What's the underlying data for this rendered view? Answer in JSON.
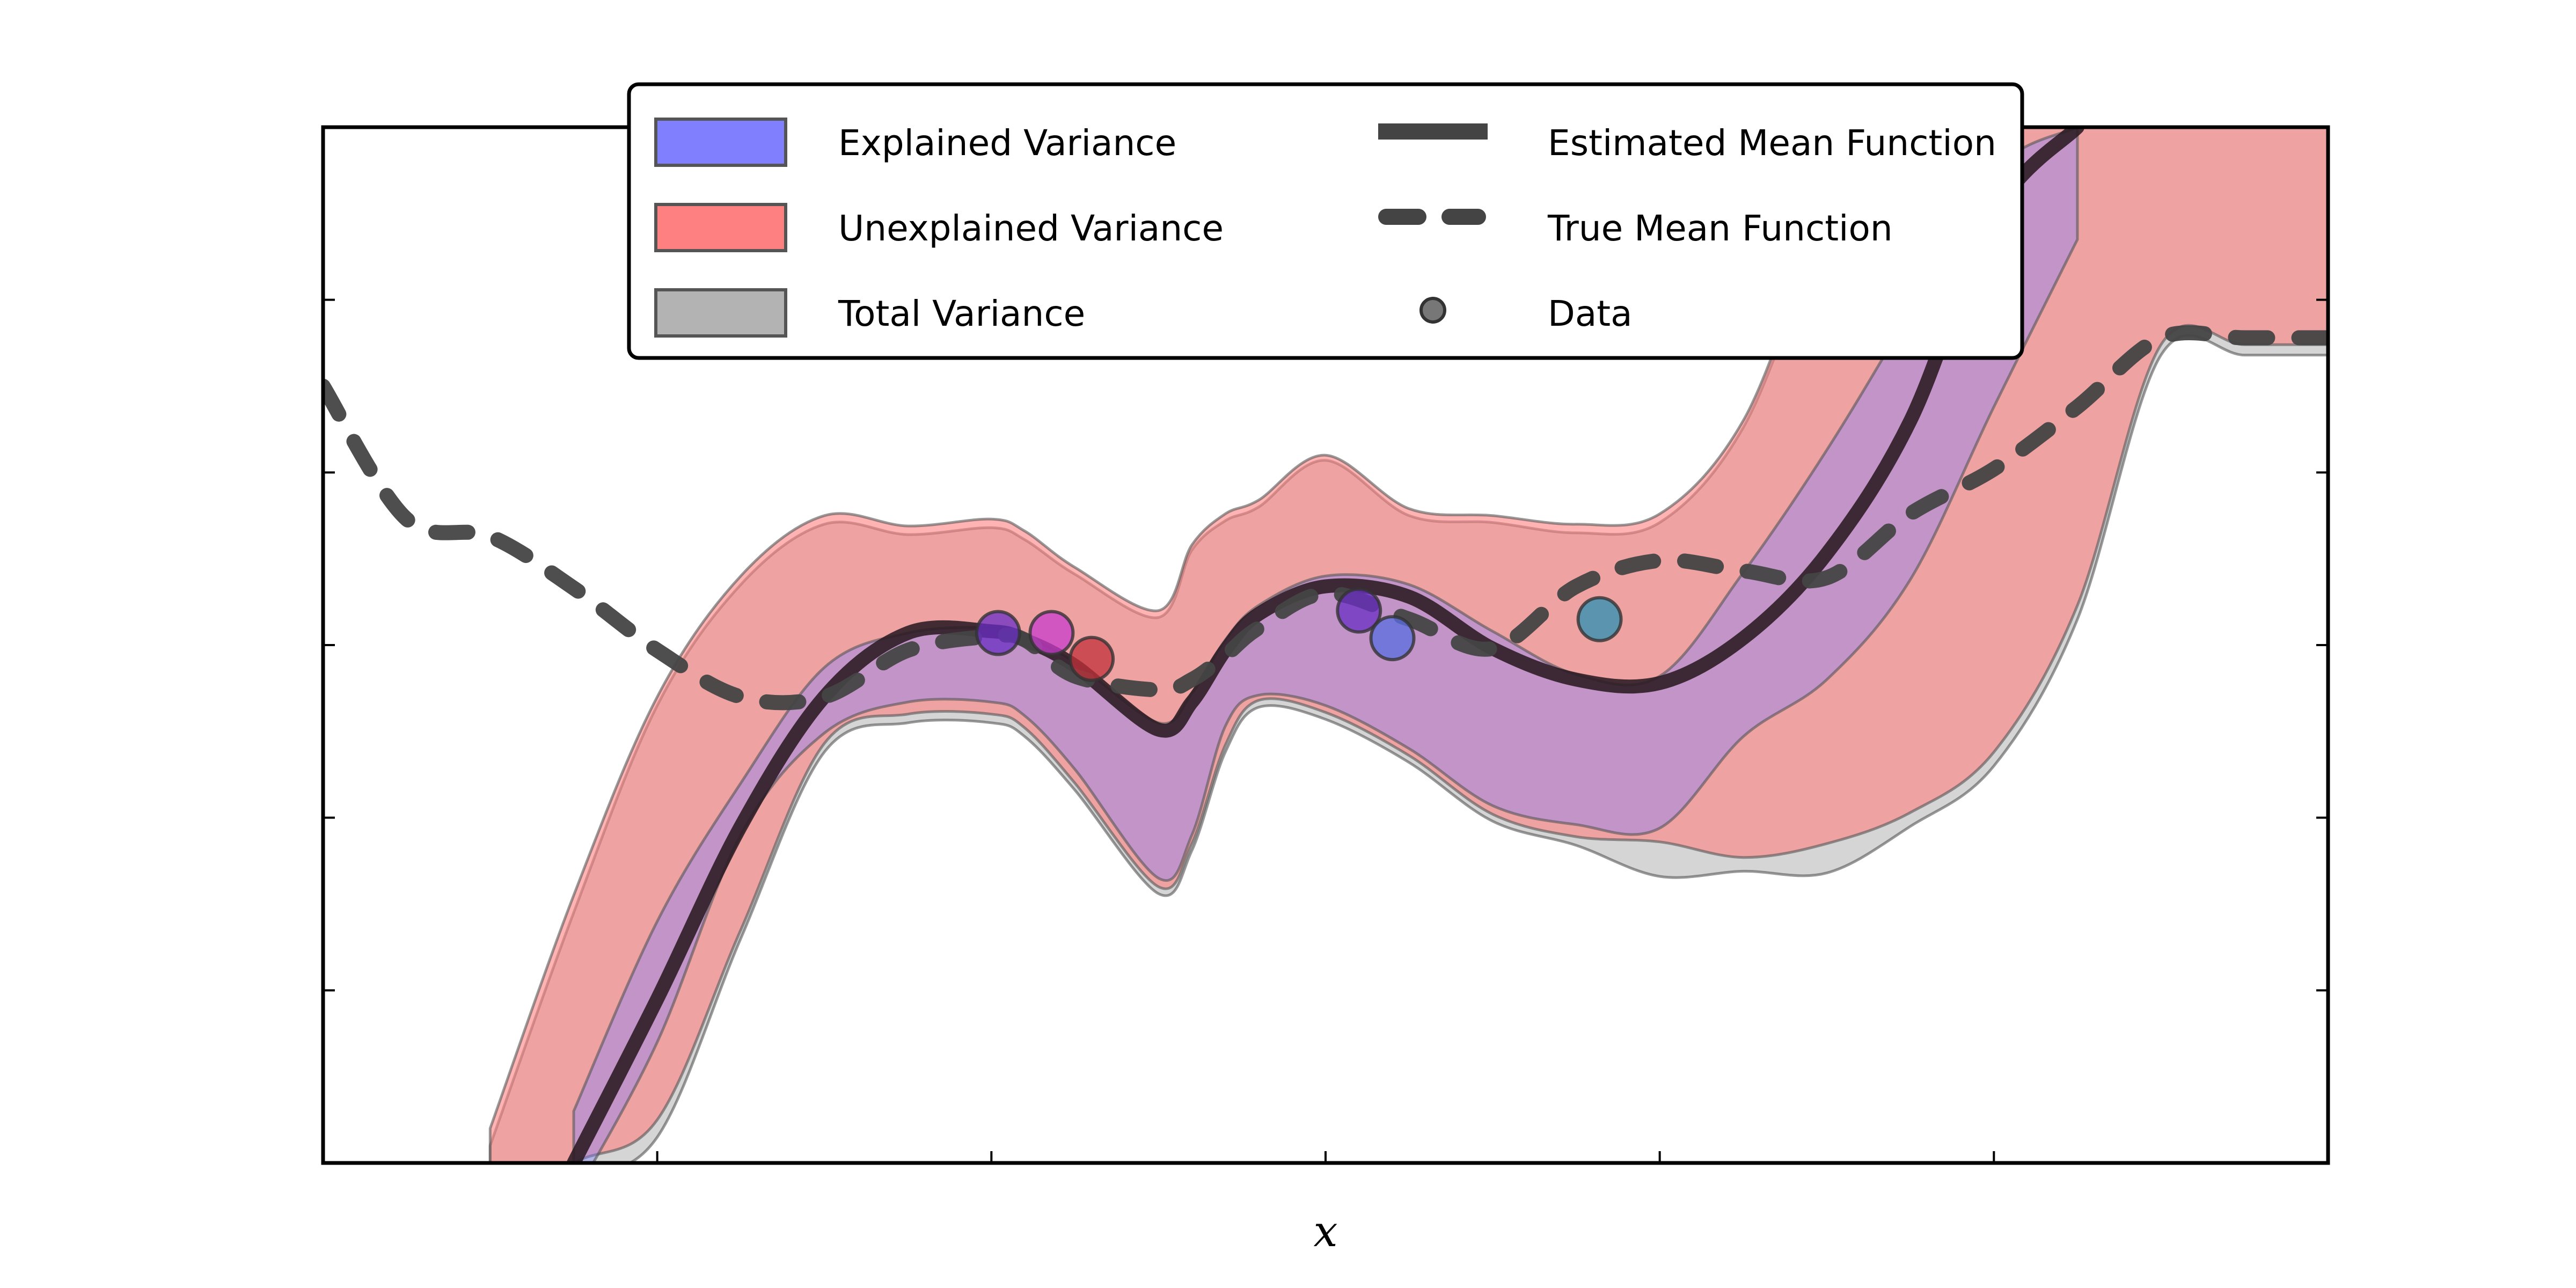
{
  "chart_data": {
    "type": "area",
    "title": "",
    "xlabel": "x",
    "ylabel": "",
    "xlim": [
      -1.0,
      5.0
    ],
    "ylim": [
      -3.0,
      3.0
    ],
    "x_ticks": [
      0,
      1,
      2,
      3,
      4
    ],
    "y_ticks": [
      -2,
      -1,
      0,
      1,
      2
    ],
    "tick_labels_shown": false,
    "grid": false,
    "legend": {
      "placement": "top-center",
      "columns": 2,
      "entries": [
        {
          "label": "Explained Variance",
          "kind": "patch",
          "color": "#8080ff"
        },
        {
          "label": "Unexplained Variance",
          "kind": "patch",
          "color": "#ff8080"
        },
        {
          "label": "Total Variance",
          "kind": "patch",
          "color": "#b3b3b3"
        },
        {
          "label": "Estimated Mean Function",
          "kind": "line",
          "color": "#444444"
        },
        {
          "label": "True Mean Function",
          "kind": "dashed-line",
          "color": "#444444"
        },
        {
          "label": "Data",
          "kind": "marker",
          "color": "#777777"
        }
      ]
    },
    "colors": {
      "explained": "#8080ff",
      "unexplained": "#ff8080",
      "total": "#b3b3b3",
      "mean_line": "#2a1a22",
      "true_line": "#444444"
    },
    "x": [
      -1.0,
      -0.75,
      -0.5,
      -0.25,
      0.0,
      0.25,
      0.5,
      0.75,
      1.0,
      1.1,
      1.25,
      1.5,
      1.6,
      1.7,
      1.8,
      2.0,
      2.25,
      2.5,
      2.75,
      3.0,
      3.25,
      3.5,
      3.75,
      4.0,
      4.25,
      4.5,
      4.75,
      5.0
    ],
    "series": [
      {
        "name": "Estimated Mean Function",
        "style": "solid",
        "values": [
          null,
          null,
          null,
          -3.0,
          -2.05,
          -1.05,
          -0.3,
          0.07,
          0.08,
          0.03,
          -0.12,
          -0.49,
          -0.33,
          -0.03,
          0.18,
          0.34,
          0.28,
          -0.02,
          -0.2,
          -0.22,
          0.04,
          0.53,
          1.3,
          2.5,
          3.0,
          null,
          null,
          null
        ]
      },
      {
        "name": "True Mean Function",
        "style": "dashed",
        "values": [
          1.5,
          0.73,
          0.63,
          0.33,
          -0.03,
          -0.3,
          -0.3,
          -0.03,
          0.05,
          0.03,
          -0.18,
          -0.26,
          -0.2,
          -0.06,
          0.1,
          0.3,
          0.15,
          -0.02,
          0.34,
          0.49,
          0.43,
          0.39,
          0.76,
          1.02,
          1.38,
          1.78,
          1.78,
          1.78
        ]
      }
    ],
    "bands": [
      {
        "name": "Total Variance",
        "lower": [
          null,
          null,
          -3.3,
          -3.1,
          -2.85,
          -1.7,
          -0.62,
          -0.45,
          -0.45,
          -0.53,
          -0.84,
          -1.44,
          -1.19,
          -0.62,
          -0.36,
          -0.43,
          -0.68,
          -1.02,
          -1.16,
          -1.34,
          -1.31,
          -1.32,
          -1.05,
          -0.7,
          0.15,
          1.68,
          1.68,
          1.68
        ],
        "upper": [
          null,
          null,
          -2.9,
          -1.55,
          -0.35,
          0.35,
          0.7,
          0.64,
          0.68,
          0.61,
          0.41,
          0.16,
          0.55,
          0.72,
          0.8,
          1.07,
          0.75,
          0.71,
          0.65,
          0.71,
          1.26,
          2.4,
          3.0,
          null,
          null,
          null,
          null,
          null
        ]
      },
      {
        "name": "Unexplained Variance",
        "lower": [
          null,
          null,
          -3.3,
          -3.0,
          -2.75,
          -1.65,
          -0.57,
          -0.4,
          -0.4,
          -0.48,
          -0.8,
          -1.4,
          -1.15,
          -0.58,
          -0.32,
          -0.39,
          -0.64,
          -0.98,
          -1.11,
          -1.14,
          -1.23,
          -1.15,
          -0.97,
          -0.62,
          0.23,
          1.74,
          1.74,
          1.74
        ],
        "upper": [
          null,
          null,
          -2.8,
          -1.45,
          -0.3,
          0.4,
          0.75,
          0.69,
          0.73,
          0.66,
          0.45,
          0.2,
          0.58,
          0.76,
          0.84,
          1.1,
          0.79,
          0.75,
          0.7,
          0.76,
          1.3,
          2.45,
          3.0,
          null,
          null,
          null,
          null,
          null
        ]
      },
      {
        "name": "Explained Variance",
        "lower": [
          null,
          null,
          null,
          -3.2,
          -2.3,
          -1.1,
          -0.51,
          -0.33,
          -0.33,
          -0.41,
          -0.72,
          -1.35,
          -1.1,
          -0.47,
          -0.29,
          -0.35,
          -0.6,
          -0.93,
          -1.04,
          -1.06,
          -0.53,
          -0.2,
          0.38,
          1.38,
          2.35,
          null,
          null,
          null
        ],
        "upper": [
          null,
          null,
          null,
          -2.7,
          -1.6,
          -0.8,
          -0.13,
          0.07,
          0.1,
          0.05,
          -0.1,
          -0.45,
          -0.28,
          0.03,
          0.23,
          0.4,
          0.35,
          0.08,
          -0.17,
          -0.18,
          0.42,
          1.13,
          1.93,
          2.75,
          3.0,
          null,
          null,
          null
        ]
      }
    ],
    "points": [
      {
        "x": 1.02,
        "y": 0.07,
        "color": "#6a2ec4"
      },
      {
        "x": 1.18,
        "y": 0.07,
        "color": "#c83ccc"
      },
      {
        "x": 1.3,
        "y": -0.08,
        "color": "#c0303a"
      },
      {
        "x": 2.1,
        "y": 0.2,
        "color": "#6a2ec4"
      },
      {
        "x": 2.2,
        "y": 0.04,
        "color": "#5a6de0"
      },
      {
        "x": 2.82,
        "y": 0.15,
        "color": "#2a8fb2"
      }
    ]
  }
}
